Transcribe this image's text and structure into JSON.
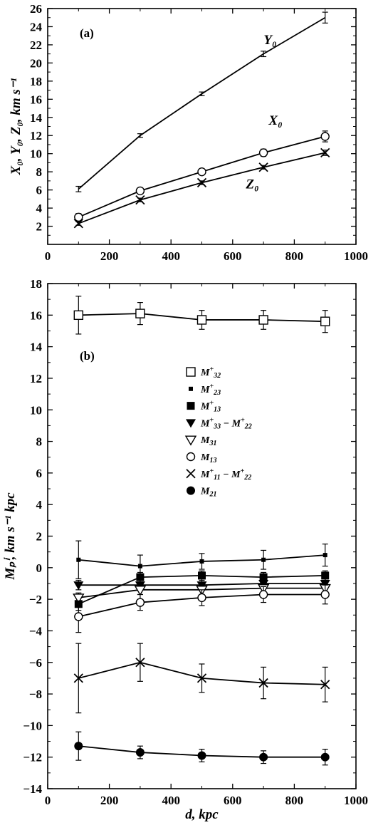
{
  "chart_data": [
    {
      "type": "line",
      "panel_label": "(a)",
      "ylabel": "X₀, Y₀, Z₀, km s⁻¹",
      "xlabel": "",
      "xlim": [
        0,
        1000
      ],
      "ylim": [
        0,
        26
      ],
      "xticks": [
        0,
        200,
        400,
        600,
        800,
        1000
      ],
      "yticks": [
        2,
        4,
        6,
        8,
        10,
        12,
        14,
        16,
        18,
        20,
        22,
        24,
        26
      ],
      "x": [
        100,
        300,
        500,
        700,
        900
      ],
      "series": [
        {
          "name": "Y₀",
          "values": [
            6.1,
            12.0,
            16.6,
            21.0,
            25.0
          ],
          "err": [
            0.3,
            0.2,
            0.2,
            0.3,
            0.6
          ],
          "marker": "none"
        },
        {
          "name": "X₀",
          "values": [
            3.0,
            5.9,
            8.0,
            10.1,
            11.9
          ],
          "err": [
            0.4,
            0.3,
            0.2,
            0.4,
            0.6
          ],
          "marker": "open-circle"
        },
        {
          "name": "Z₀",
          "values": [
            2.3,
            4.9,
            6.8,
            8.5,
            10.1
          ],
          "err": [
            0.2,
            0.2,
            0.2,
            0.2,
            0.3
          ],
          "marker": "x"
        }
      ]
    },
    {
      "type": "line",
      "panel_label": "(b)",
      "ylabel": "Mₚⁱ, km s⁻¹ kpc",
      "xlabel": "d, kpc",
      "xlim": [
        0,
        1000
      ],
      "ylim": [
        -14,
        18
      ],
      "xticks": [
        0,
        200,
        400,
        600,
        800,
        1000
      ],
      "yticks": [
        -14,
        -12,
        -10,
        -8,
        -6,
        -4,
        -2,
        0,
        2,
        4,
        6,
        8,
        10,
        12,
        14,
        16,
        18
      ],
      "x": [
        100,
        300,
        500,
        700,
        900
      ],
      "legend": [
        {
          "marker": "open-square",
          "main": "M",
          "sup": "+",
          "sub": "32",
          "minus_main": "",
          "minus_sup": "",
          "minus_sub": ""
        },
        {
          "marker": "small-square",
          "main": "M",
          "sup": "+",
          "sub": "23",
          "minus_main": "",
          "minus_sup": "",
          "minus_sub": ""
        },
        {
          "marker": "filled-square",
          "main": "M",
          "sup": "+",
          "sub": "13",
          "minus_main": "",
          "minus_sup": "",
          "minus_sub": ""
        },
        {
          "marker": "filled-triangle",
          "main": "M",
          "sup": "+",
          "sub": "33",
          "minus_main": "M",
          "minus_sup": "+",
          "minus_sub": "22"
        },
        {
          "marker": "open-triangle",
          "main": "M",
          "sup": "",
          "sub": "31",
          "minus_main": "",
          "minus_sup": "",
          "minus_sub": ""
        },
        {
          "marker": "open-circle",
          "main": "M",
          "sup": "",
          "sub": "13",
          "minus_main": "",
          "minus_sup": "",
          "minus_sub": ""
        },
        {
          "marker": "x",
          "main": "M",
          "sup": "+",
          "sub": "11",
          "minus_main": "M",
          "minus_sup": "+",
          "minus_sub": "22"
        },
        {
          "marker": "filled-circle",
          "main": "M",
          "sup": "",
          "sub": "21",
          "minus_main": "",
          "minus_sup": "",
          "minus_sub": ""
        }
      ],
      "series": [
        {
          "marker": "open-square",
          "values": [
            16.0,
            16.1,
            15.7,
            15.7,
            15.6
          ],
          "err": [
            1.2,
            0.7,
            0.6,
            0.6,
            0.7
          ]
        },
        {
          "marker": "small-square",
          "values": [
            0.5,
            0.1,
            0.4,
            0.5,
            0.8
          ],
          "err": [
            1.2,
            0.7,
            0.5,
            0.6,
            0.7
          ]
        },
        {
          "marker": "filled-square",
          "values": [
            -2.3,
            -0.6,
            -0.5,
            -0.6,
            -0.5
          ],
          "err": [
            0.4,
            0.3,
            0.3,
            0.3,
            0.3
          ]
        },
        {
          "marker": "filled-triangle",
          "values": [
            -1.1,
            -1.1,
            -1.1,
            -1.0,
            -1.0
          ],
          "err": [
            0.3,
            0.3,
            0.3,
            0.3,
            0.3
          ]
        },
        {
          "marker": "open-triangle",
          "values": [
            -1.9,
            -1.4,
            -1.4,
            -1.3,
            -1.3
          ],
          "err": [
            0.3,
            0.3,
            0.3,
            0.3,
            0.3
          ]
        },
        {
          "marker": "open-circle",
          "values": [
            -3.1,
            -2.2,
            -1.9,
            -1.7,
            -1.7
          ],
          "err": [
            1.0,
            0.5,
            0.5,
            0.5,
            0.6
          ]
        },
        {
          "marker": "x",
          "values": [
            -7.0,
            -6.0,
            -7.0,
            -7.3,
            -7.4
          ],
          "err": [
            2.2,
            1.2,
            0.9,
            1.0,
            1.1
          ]
        },
        {
          "marker": "filled-circle",
          "values": [
            -11.3,
            -11.7,
            -11.9,
            -12.0,
            -12.0
          ],
          "err": [
            0.9,
            0.4,
            0.4,
            0.4,
            0.5
          ]
        }
      ]
    }
  ]
}
